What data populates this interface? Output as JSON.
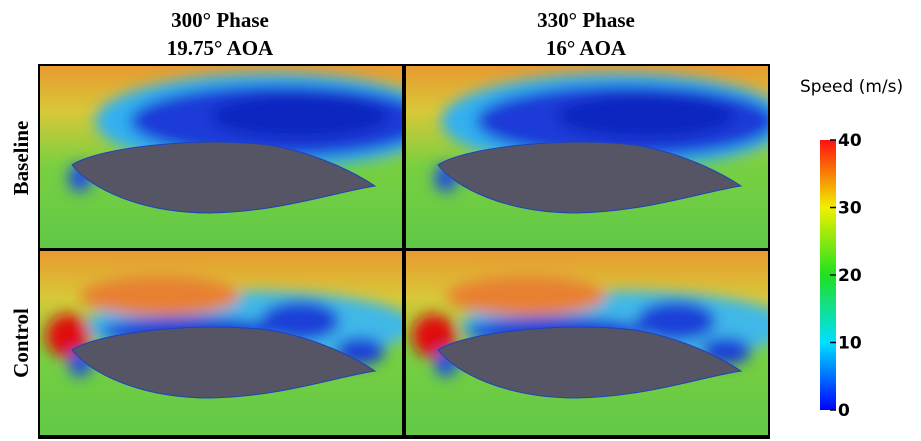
{
  "headers": [
    {
      "phase": "300° Phase",
      "aoa": "19.75° AOA"
    },
    {
      "phase": "330° Phase",
      "aoa": "16° AOA"
    }
  ],
  "rows": [
    "Baseline",
    "Control"
  ],
  "colorbar": {
    "title": "Speed (m/s)",
    "lim": [
      0,
      40
    ],
    "ticks": [
      0,
      10,
      20,
      30,
      40
    ]
  }
}
